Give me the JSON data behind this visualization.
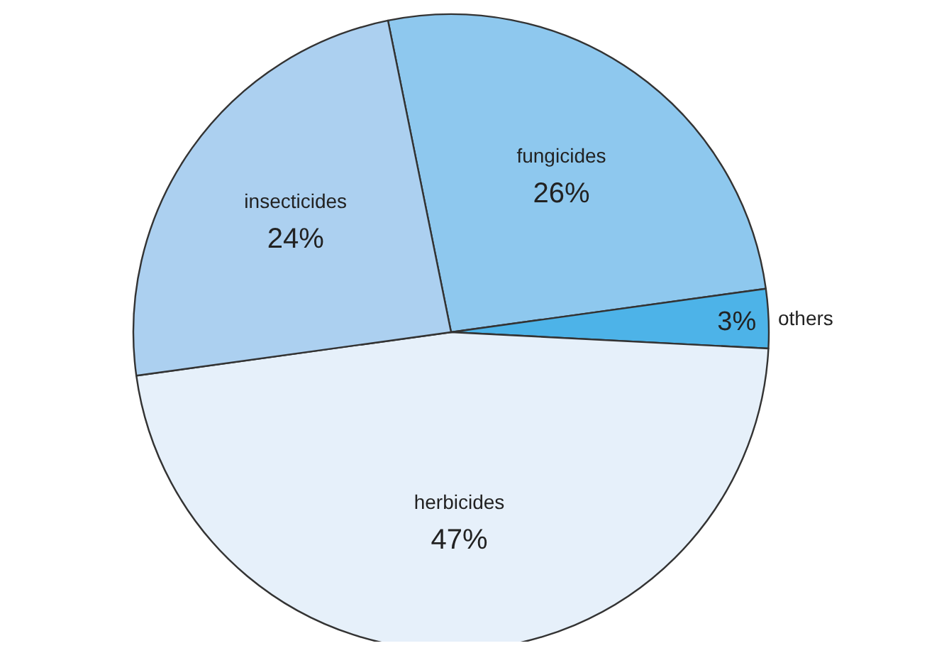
{
  "chart_data": {
    "type": "pie",
    "categories": [
      "fungicides",
      "others",
      "herbicides",
      "insecticides"
    ],
    "values": [
      26,
      3,
      47,
      24
    ],
    "value_labels": [
      "26%",
      "3%",
      "47%",
      "24%"
    ],
    "colors": [
      "#8ec8ee",
      "#4db3e8",
      "#e6f0fa",
      "#acd0f0"
    ]
  }
}
